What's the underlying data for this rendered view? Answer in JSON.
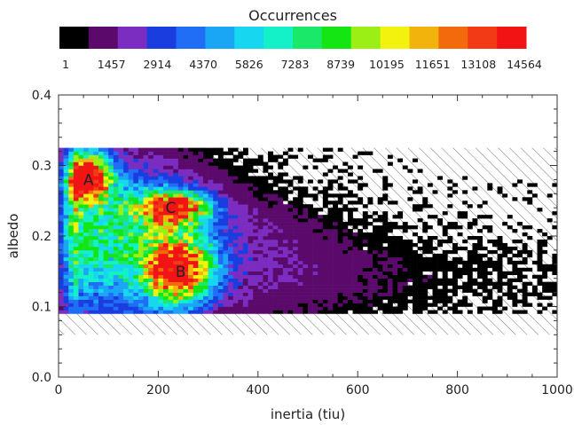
{
  "chart_data": {
    "type": "heatmap",
    "title": "",
    "colorbar": {
      "label": "Occurrences",
      "colors": [
        "#000000",
        "#5b0a6b",
        "#7b2cc1",
        "#1a3de0",
        "#1f6ef5",
        "#1aa6f5",
        "#16d6f0",
        "#14f0c8",
        "#1ae868",
        "#14e614",
        "#9bef14",
        "#f2f20e",
        "#f2b40c",
        "#f26a0c",
        "#f23a16",
        "#f21414"
      ],
      "tick_labels": [
        "1",
        "1457",
        "2914",
        "4370",
        "5826",
        "7283",
        "8739",
        "10195",
        "11651",
        "13108",
        "14564"
      ]
    },
    "xlabel": "inertia (tiu)",
    "ylabel": "albedo",
    "xlim": [
      0,
      1000
    ],
    "ylim": [
      0,
      0.4
    ],
    "x_ticks": [
      "0",
      "200",
      "400",
      "600",
      "800",
      "1000"
    ],
    "y_ticks": [
      "0.0",
      "0.1",
      "0.2",
      "0.3",
      "0.4"
    ],
    "hatched_region": {
      "x": [
        0,
        1000
      ],
      "y": [
        0.06,
        0.325
      ]
    },
    "annotations": [
      {
        "text": "A",
        "x": 60,
        "y": 0.28
      },
      {
        "text": "C",
        "x": 225,
        "y": 0.24
      },
      {
        "text": "B",
        "x": 245,
        "y": 0.15
      }
    ],
    "peaks": [
      {
        "x": 60,
        "y": 0.282,
        "level": 14000
      },
      {
        "x": 230,
        "y": 0.24,
        "level": 12300
      },
      {
        "x": 240,
        "y": 0.152,
        "level": 13200
      }
    ]
  }
}
